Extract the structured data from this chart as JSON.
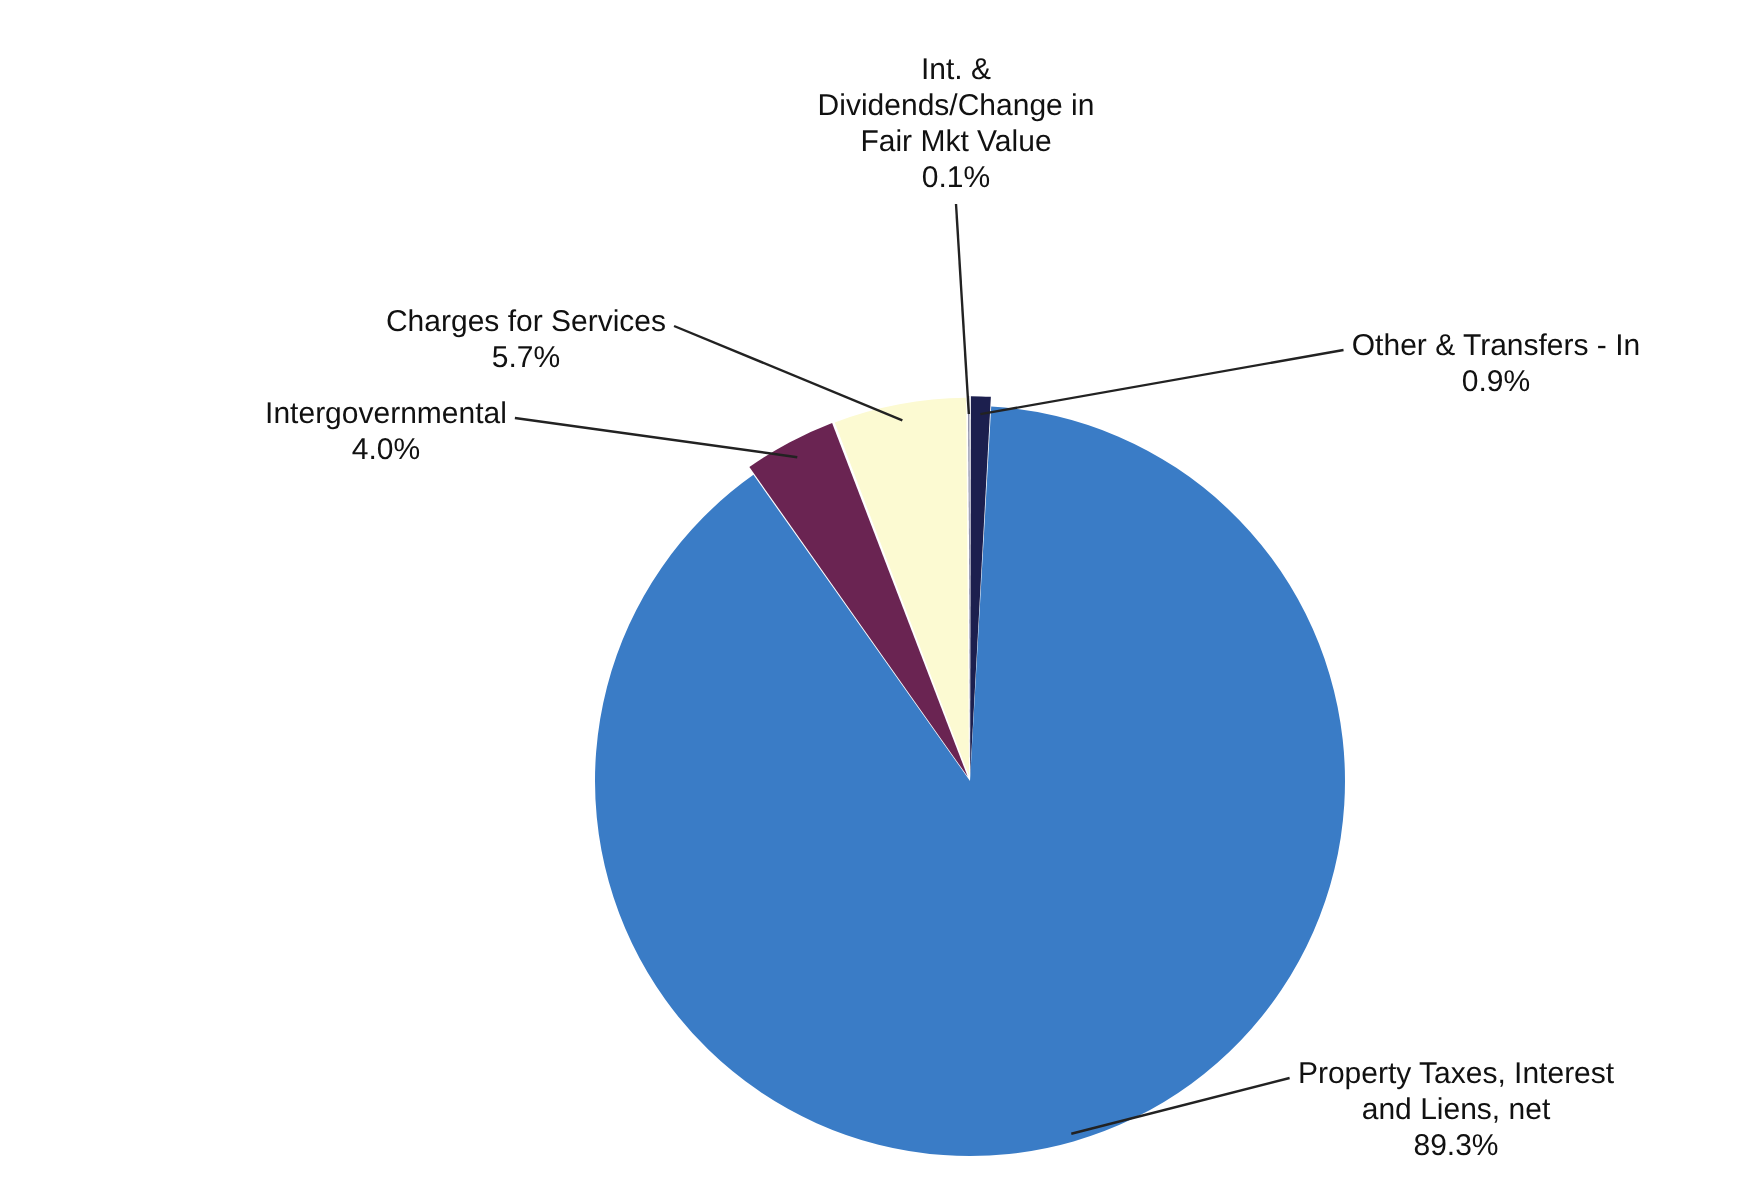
{
  "chart_data": {
    "type": "pie",
    "categories": [
      "Other & Transfers - In",
      "Property Taxes, Interest and Liens, net",
      "Intergovernmental",
      "Charges for Services",
      "Int. & Dividends/Change in Fair Mkt Value"
    ],
    "values": [
      0.9,
      89.3,
      4.0,
      5.7,
      0.1
    ],
    "colors": [
      "#1c1f4e",
      "#3a7cc6",
      "#6a2452",
      "#fcfad2",
      "#2a2d5c"
    ],
    "value_labels": [
      "0.9%",
      "89.3%",
      "4.0%",
      "5.7%",
      "0.1%"
    ],
    "legend": false
  }
}
